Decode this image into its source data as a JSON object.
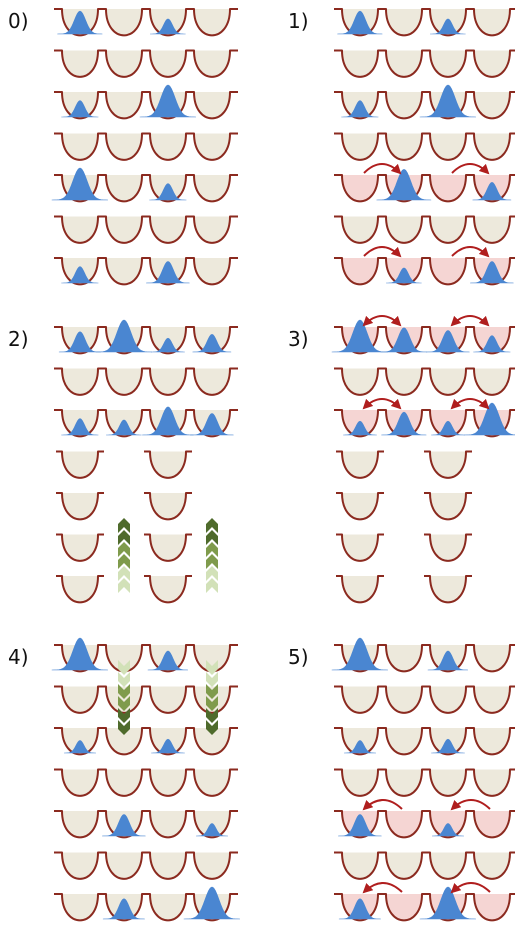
{
  "colors": {
    "well_outline": "#8b2a1f",
    "well_fill": "#ede9dc",
    "well_fill_highlight": "#f5d5d3",
    "atom": "#4a86d1",
    "arrow": "#b01e1e",
    "chevron_dark": "#4f6b2c",
    "chevron_mid": "#7f9b4c",
    "chevron_light": "#d2e1b8"
  },
  "panels": [
    {
      "label": "0)",
      "rows": [
        {
          "wells": [
            0,
            1,
            2,
            3
          ],
          "highlight": false,
          "atoms": [
            [
              0,
              0.65
            ],
            [
              2,
              0.35
            ]
          ]
        },
        {
          "wells": [
            0,
            1,
            2,
            3
          ],
          "highlight": false,
          "atoms": []
        },
        {
          "wells": [
            0,
            1,
            2,
            3
          ],
          "highlight": false,
          "atoms": [
            [
              0,
              0.4
            ],
            [
              2,
              1.0
            ]
          ]
        },
        {
          "wells": [
            0,
            1,
            2,
            3
          ],
          "highlight": false,
          "atoms": []
        },
        {
          "wells": [
            0,
            1,
            2,
            3
          ],
          "highlight": false,
          "atoms": [
            [
              0,
              1.0
            ],
            [
              2,
              0.4
            ]
          ]
        },
        {
          "wells": [
            0,
            1,
            2,
            3
          ],
          "highlight": false,
          "atoms": []
        },
        {
          "wells": [
            0,
            1,
            2,
            3
          ],
          "highlight": false,
          "atoms": [
            [
              0,
              0.4
            ],
            [
              2,
              0.6
            ]
          ]
        }
      ],
      "arrows": [],
      "chevrons": []
    },
    {
      "label": "1)",
      "rows": [
        {
          "wells": [
            0,
            1,
            2,
            3
          ],
          "highlight": false,
          "atoms": [
            [
              0,
              0.65
            ],
            [
              2,
              0.35
            ]
          ]
        },
        {
          "wells": [
            0,
            1,
            2,
            3
          ],
          "highlight": false,
          "atoms": []
        },
        {
          "wells": [
            0,
            1,
            2,
            3
          ],
          "highlight": false,
          "atoms": [
            [
              0,
              0.4
            ],
            [
              2,
              1.0
            ]
          ]
        },
        {
          "wells": [
            0,
            1,
            2,
            3
          ],
          "highlight": false,
          "atoms": []
        },
        {
          "wells": [
            0,
            1,
            2,
            3
          ],
          "highlight": true,
          "atoms": [
            [
              1,
              0.95
            ],
            [
              3,
              0.45
            ]
          ]
        },
        {
          "wells": [
            0,
            1,
            2,
            3
          ],
          "highlight": false,
          "atoms": []
        },
        {
          "wells": [
            0,
            1,
            2,
            3
          ],
          "highlight": true,
          "atoms": [
            [
              1,
              0.35
            ],
            [
              3,
              0.6
            ]
          ]
        }
      ],
      "arrows": [
        {
          "row": 4,
          "from": 0,
          "to": 1,
          "dir": "right"
        },
        {
          "row": 4,
          "from": 2,
          "to": 3,
          "dir": "right"
        },
        {
          "row": 6,
          "from": 0,
          "to": 1,
          "dir": "right"
        },
        {
          "row": 6,
          "from": 2,
          "to": 3,
          "dir": "right"
        }
      ],
      "chevrons": []
    },
    {
      "label": "2)",
      "rows": [
        {
          "wells": [
            0,
            1,
            2,
            3
          ],
          "highlight": false,
          "atoms": [
            [
              0,
              0.55
            ],
            [
              1,
              1.0
            ],
            [
              2,
              0.3
            ],
            [
              3,
              0.45
            ]
          ]
        },
        {
          "wells": [
            0,
            1,
            2,
            3
          ],
          "highlight": false,
          "atoms": []
        },
        {
          "wells": [
            0,
            1,
            2,
            3
          ],
          "highlight": false,
          "atoms": [
            [
              0,
              0.4
            ],
            [
              1,
              0.35
            ],
            [
              2,
              0.85
            ],
            [
              3,
              0.6
            ]
          ]
        },
        {
          "wells": [
            0,
            2
          ],
          "highlight": false,
          "atoms": []
        },
        {
          "wells": [
            0,
            2
          ],
          "highlight": false,
          "atoms": []
        },
        {
          "wells": [
            0,
            2
          ],
          "highlight": false,
          "atoms": []
        },
        {
          "wells": [
            0,
            2
          ],
          "highlight": false,
          "atoms": []
        }
      ],
      "arrows": [],
      "chevrons": [
        {
          "col": 1,
          "dir": "up"
        },
        {
          "col": 3,
          "dir": "up"
        }
      ]
    },
    {
      "label": "3)",
      "rows": [
        {
          "wells": [
            0,
            1,
            2,
            3
          ],
          "highlight": true,
          "atoms": [
            [
              0,
              1.0
            ],
            [
              1,
              0.7
            ],
            [
              2,
              0.6
            ],
            [
              3,
              0.4
            ]
          ]
        },
        {
          "wells": [
            0,
            1,
            2,
            3
          ],
          "highlight": false,
          "atoms": []
        },
        {
          "wells": [
            0,
            1,
            2,
            3
          ],
          "highlight": true,
          "atoms": [
            [
              0,
              0.3
            ],
            [
              1,
              0.65
            ],
            [
              2,
              0.3
            ],
            [
              3,
              1.0
            ]
          ]
        },
        {
          "wells": [
            0,
            2
          ],
          "highlight": false,
          "atoms": []
        },
        {
          "wells": [
            0,
            2
          ],
          "highlight": false,
          "atoms": []
        },
        {
          "wells": [
            0,
            2
          ],
          "highlight": false,
          "atoms": []
        },
        {
          "wells": [
            0,
            2
          ],
          "highlight": false,
          "atoms": []
        }
      ],
      "arrows": [
        {
          "row": 0,
          "from": 0,
          "to": 1,
          "dir": "both"
        },
        {
          "row": 0,
          "from": 2,
          "to": 3,
          "dir": "both"
        },
        {
          "row": 2,
          "from": 0,
          "to": 1,
          "dir": "both"
        },
        {
          "row": 2,
          "from": 2,
          "to": 3,
          "dir": "both"
        }
      ],
      "chevrons": []
    },
    {
      "label": "4)",
      "rows": [
        {
          "wells": [
            0,
            1,
            2,
            3
          ],
          "highlight": false,
          "atoms": [
            [
              0,
              1.0
            ],
            [
              2,
              0.5
            ]
          ]
        },
        {
          "wells": [
            0,
            1,
            2,
            3
          ],
          "highlight": false,
          "atoms": []
        },
        {
          "wells": [
            0,
            1,
            2,
            3
          ],
          "highlight": false,
          "atoms": [
            [
              0,
              0.25
            ],
            [
              2,
              0.3
            ]
          ]
        },
        {
          "wells": [
            0,
            1,
            2,
            3
          ],
          "highlight": false,
          "atoms": []
        },
        {
          "wells": [
            0,
            1,
            2,
            3
          ],
          "highlight": false,
          "atoms": [
            [
              1,
              0.6
            ],
            [
              3,
              0.25
            ]
          ]
        },
        {
          "wells": [
            0,
            1,
            2,
            3
          ],
          "highlight": false,
          "atoms": []
        },
        {
          "wells": [
            0,
            1,
            2,
            3
          ],
          "highlight": false,
          "atoms": [
            [
              1,
              0.55
            ],
            [
              3,
              1.0
            ]
          ]
        }
      ],
      "arrows": [],
      "chevrons": [
        {
          "col": 1,
          "dir": "down"
        },
        {
          "col": 3,
          "dir": "down"
        }
      ]
    },
    {
      "label": "5)",
      "rows": [
        {
          "wells": [
            0,
            1,
            2,
            3
          ],
          "highlight": false,
          "atoms": [
            [
              0,
              1.0
            ],
            [
              2,
              0.5
            ]
          ]
        },
        {
          "wells": [
            0,
            1,
            2,
            3
          ],
          "highlight": false,
          "atoms": []
        },
        {
          "wells": [
            0,
            1,
            2,
            3
          ],
          "highlight": false,
          "atoms": [
            [
              0,
              0.25
            ],
            [
              2,
              0.3
            ]
          ]
        },
        {
          "wells": [
            0,
            1,
            2,
            3
          ],
          "highlight": false,
          "atoms": []
        },
        {
          "wells": [
            0,
            1,
            2,
            3
          ],
          "highlight": true,
          "atoms": [
            [
              0,
              0.6
            ],
            [
              2,
              0.25
            ]
          ]
        },
        {
          "wells": [
            0,
            1,
            2,
            3
          ],
          "highlight": false,
          "atoms": []
        },
        {
          "wells": [
            0,
            1,
            2,
            3
          ],
          "highlight": true,
          "atoms": [
            [
              0,
              0.55
            ],
            [
              2,
              1.0
            ]
          ]
        }
      ],
      "arrows": [
        {
          "row": 4,
          "from": 1,
          "to": 0,
          "dir": "left"
        },
        {
          "row": 4,
          "from": 3,
          "to": 2,
          "dir": "left"
        },
        {
          "row": 6,
          "from": 1,
          "to": 0,
          "dir": "left"
        },
        {
          "row": 6,
          "from": 3,
          "to": 2,
          "dir": "left"
        }
      ],
      "chevrons": []
    }
  ]
}
